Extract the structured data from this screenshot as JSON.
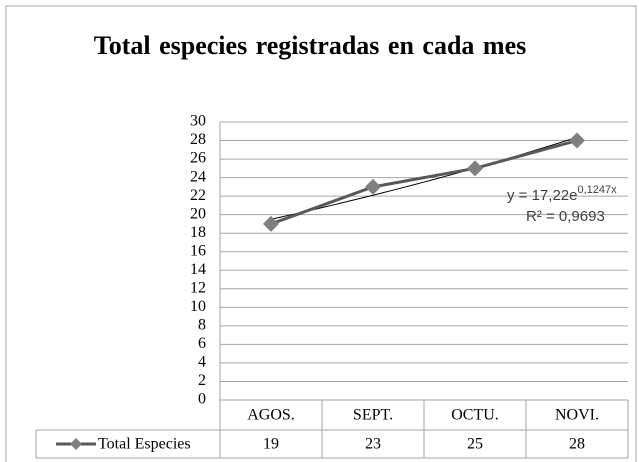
{
  "chart_data": {
    "type": "line",
    "title": "Total especies registradas en cada mes",
    "categories": [
      "AGOS.",
      "SEPT.",
      "OCTU.",
      "NOVI."
    ],
    "series": [
      {
        "name": "Total Especies",
        "color": "#595959",
        "marker_color": "#7f7f7f",
        "values": [
          19,
          23,
          25,
          28
        ]
      }
    ],
    "ylim": [
      0,
      30
    ],
    "yticks": [
      0,
      2,
      4,
      6,
      8,
      10,
      12,
      14,
      16,
      18,
      20,
      22,
      24,
      26,
      28,
      30
    ],
    "grid": true,
    "trendline": {
      "kind": "exponential",
      "color": "#000000",
      "equation": "y = 17,22e",
      "exponent": "0,1247x",
      "r_squared": "R² = 0,9693"
    }
  }
}
